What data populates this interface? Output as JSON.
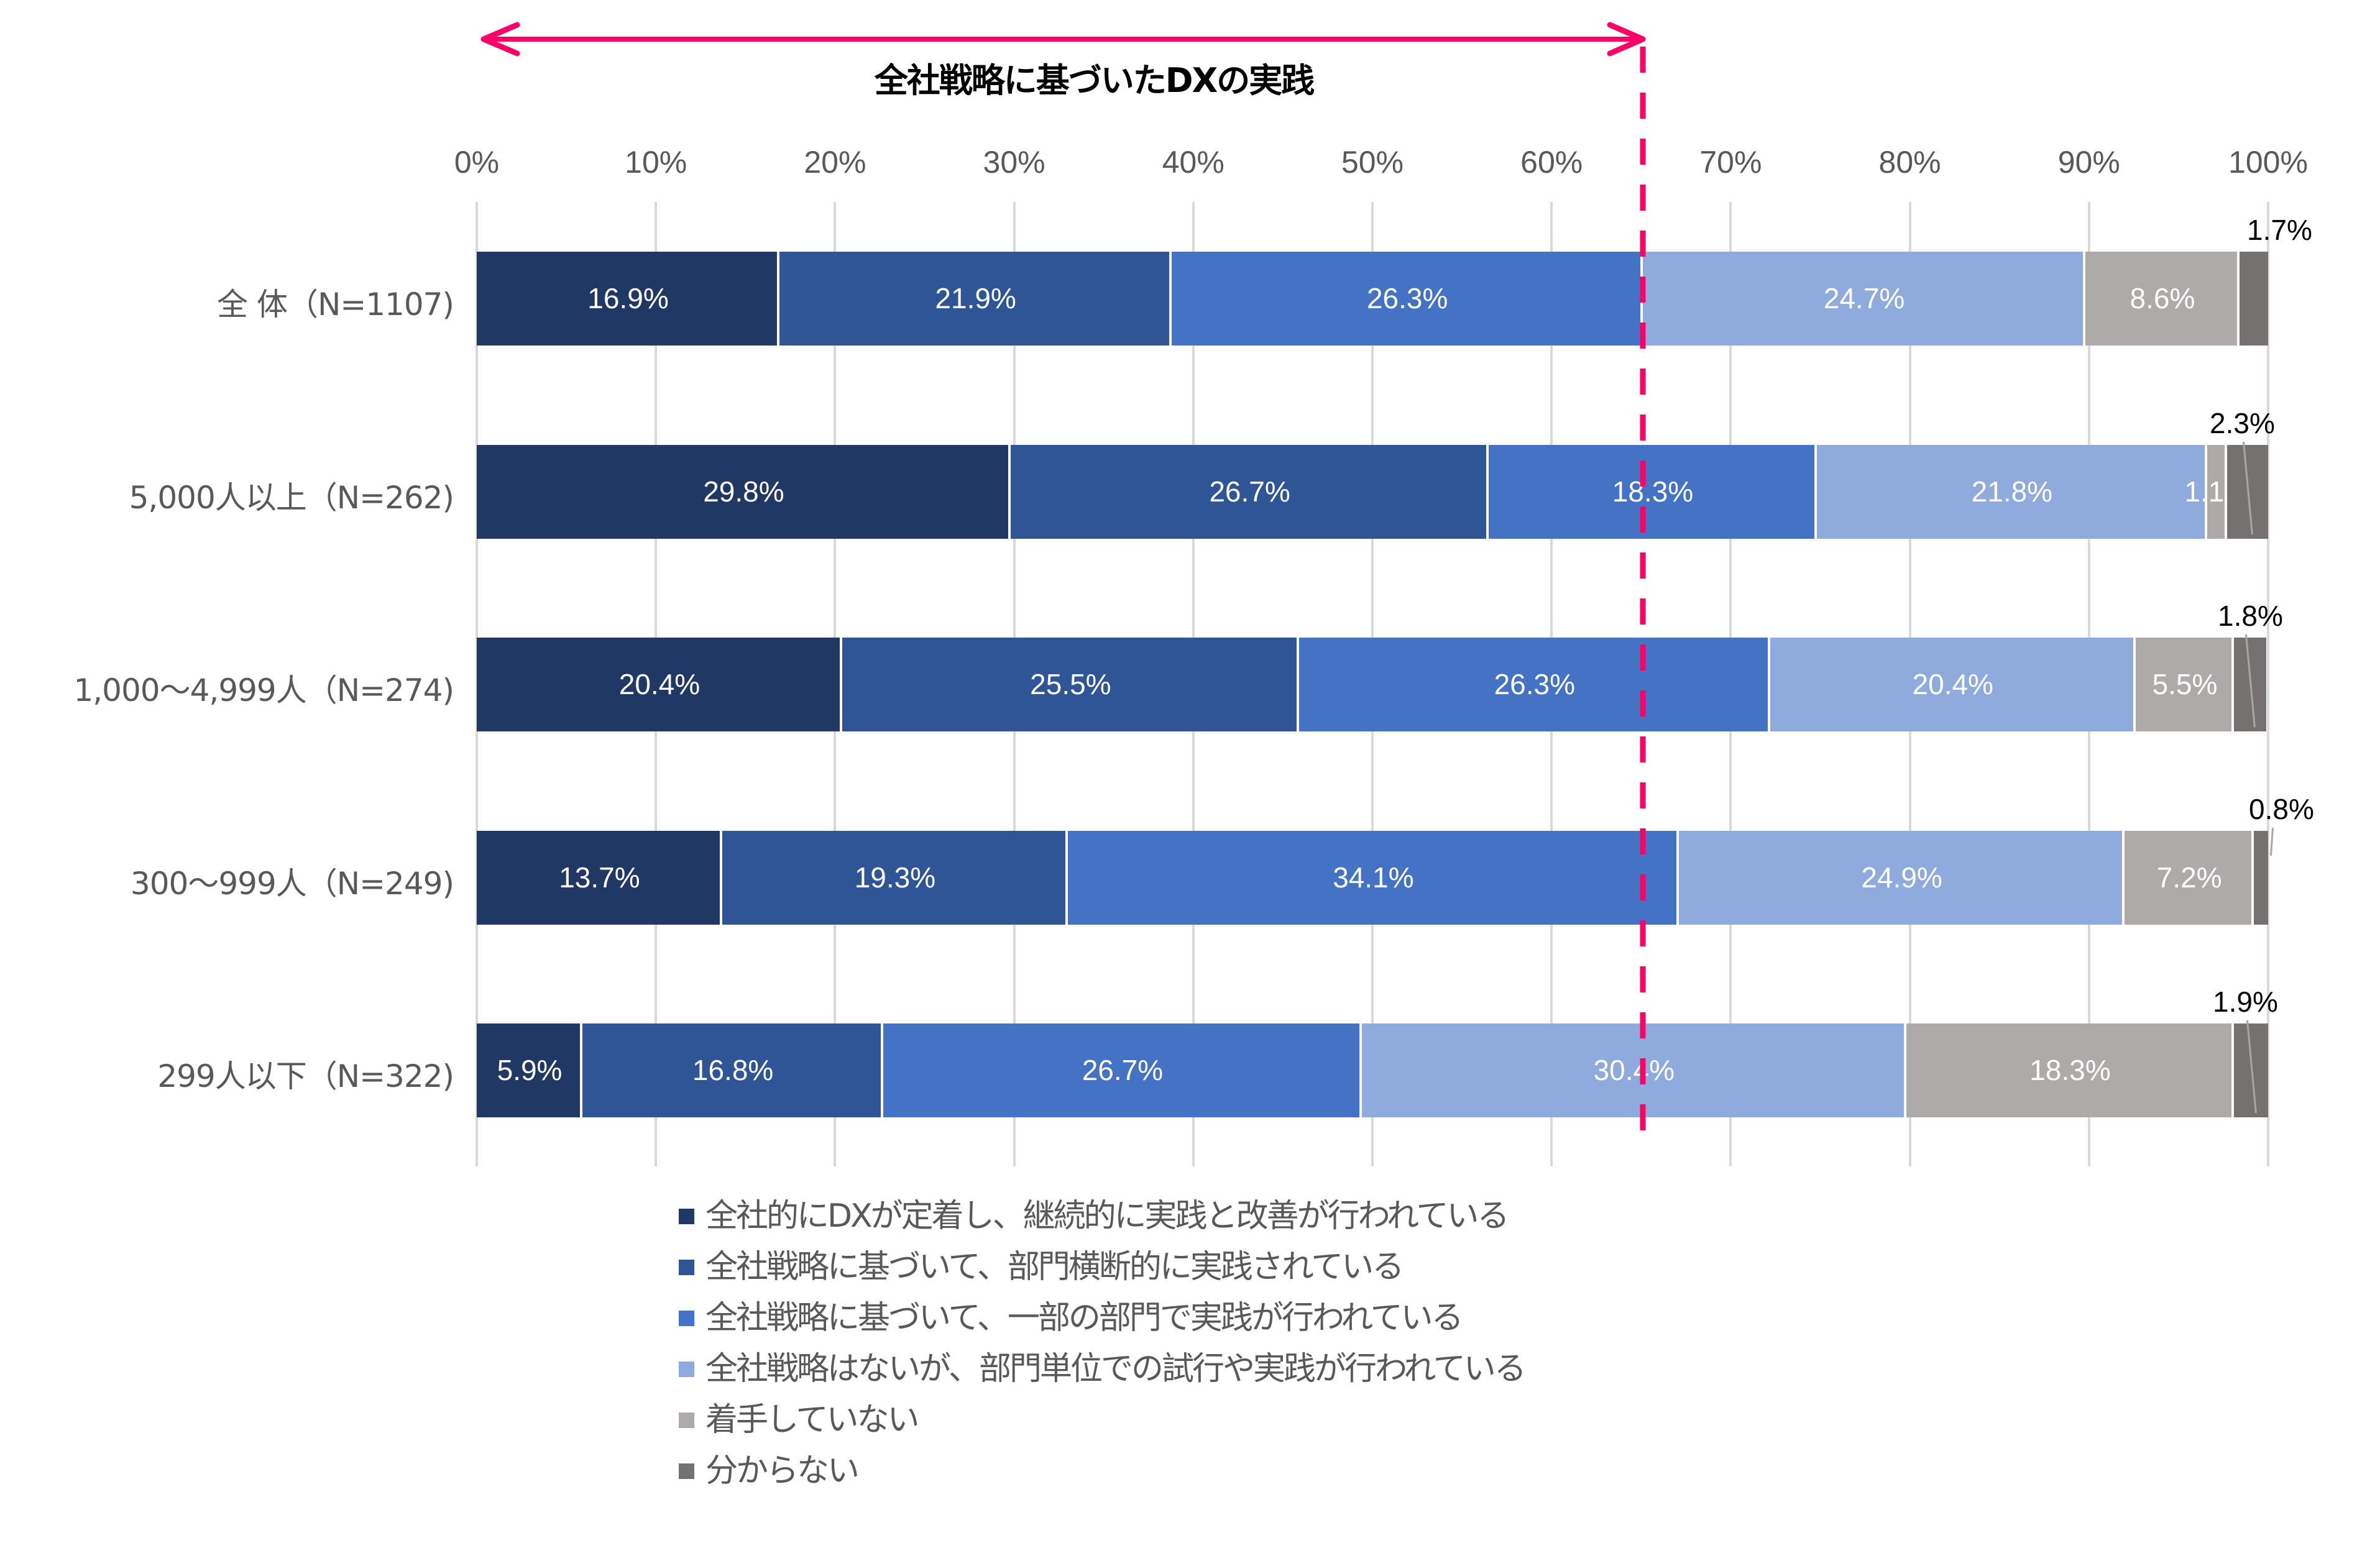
{
  "header": {
    "annotation": "全社戦略に基づいたDXの実践"
  },
  "colors": {
    "accent": "#FF0066",
    "series": [
      "#203864",
      "#2F5597",
      "#4472C4",
      "#8FAADC",
      "#AEAAAA",
      "#767171"
    ],
    "grid": "#D9D9D9",
    "text": "#595959"
  },
  "chart_data": {
    "type": "bar",
    "orientation": "horizontal",
    "stacked": true,
    "percent_stacked": true,
    "title": "",
    "annotation": "全社戦略に基づいたDXの実践",
    "annotation_range_pct": [
      0,
      65.1
    ],
    "xlabel": "",
    "ylabel": "",
    "xlim": [
      0,
      100
    ],
    "x_ticks": [
      "0%",
      "10%",
      "20%",
      "30%",
      "40%",
      "50%",
      "60%",
      "70%",
      "80%",
      "90%",
      "100%"
    ],
    "grid": true,
    "legend_position": "bottom",
    "categories": [
      "全 体（N=1107)",
      "5,000人以上（N=262)",
      "1,000～4,999人（N=274)",
      "300～999人（N=249)",
      "299人以下（N=322)"
    ],
    "series": [
      {
        "name": "全社的にDXが定着し、継続的に実践と改善が行われている",
        "values": [
          16.9,
          29.8,
          20.4,
          13.7,
          5.9
        ]
      },
      {
        "name": "全社戦略に基づいて、部門横断的に実践されている",
        "values": [
          21.9,
          26.7,
          25.5,
          19.3,
          16.8
        ]
      },
      {
        "name": "全社戦略に基づいて、一部の部門で実践が行われている",
        "values": [
          26.3,
          18.3,
          26.3,
          34.1,
          26.7
        ]
      },
      {
        "name": "全社戦略はないが、部門単位での試行や実践が行われている",
        "values": [
          24.7,
          21.8,
          20.4,
          24.9,
          30.4
        ]
      },
      {
        "name": "着手していない",
        "values": [
          8.6,
          1.1,
          5.5,
          7.2,
          18.3
        ]
      },
      {
        "name": "分からない",
        "values": [
          1.7,
          2.3,
          1.8,
          0.8,
          1.9
        ]
      }
    ],
    "value_labels": [
      [
        "16.9%",
        "21.9%",
        "26.3%",
        "24.7%",
        "8.6%",
        "1.7%"
      ],
      [
        "29.8%",
        "26.7%",
        "18.3%",
        "21.8%",
        "1.1%",
        "2.3%"
      ],
      [
        "20.4%",
        "25.5%",
        "26.3%",
        "20.4%",
        "5.5%",
        "1.8%"
      ],
      [
        "13.7%",
        "19.3%",
        "34.1%",
        "24.9%",
        "7.2%",
        "0.8%"
      ],
      [
        "5.9%",
        "16.8%",
        "26.7%",
        "30.4%",
        "18.3%",
        "1.9%"
      ]
    ]
  }
}
